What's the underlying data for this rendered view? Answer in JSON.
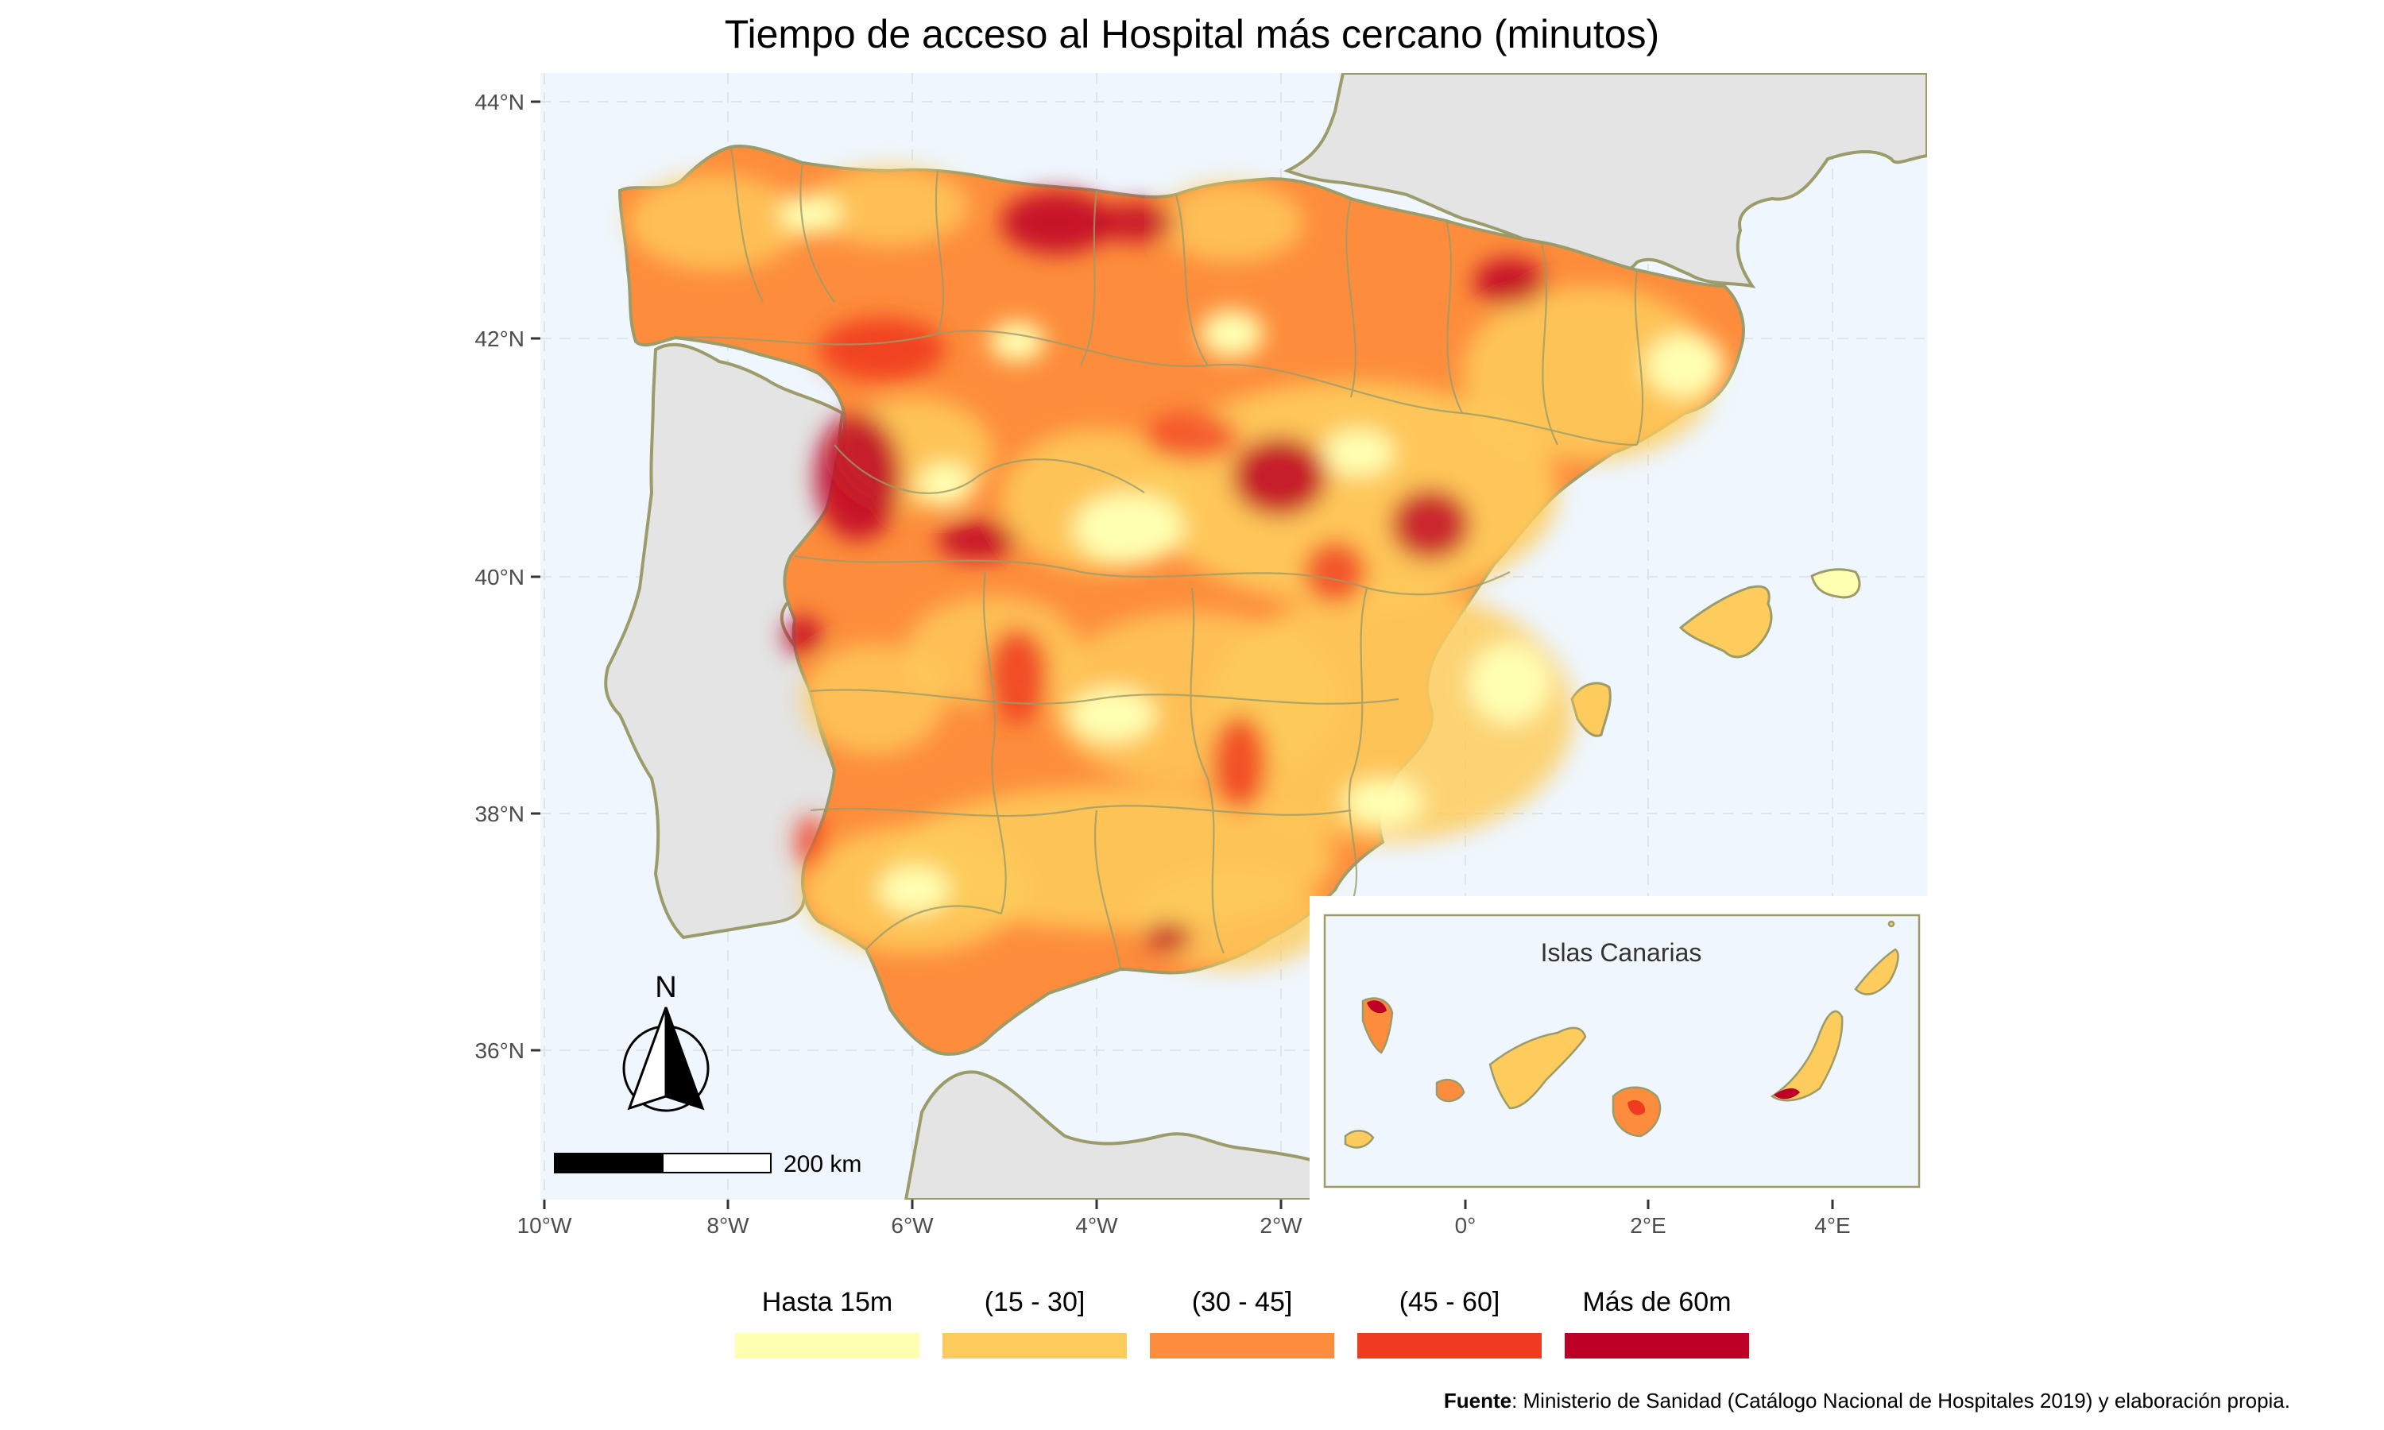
{
  "title": "Tiempo de acceso al Hospital más cercano (minutos)",
  "axes": {
    "lat_ticks": [
      "44°N",
      "42°N",
      "40°N",
      "38°N",
      "36°N"
    ],
    "lon_ticks": [
      "10°W",
      "8°W",
      "6°W",
      "4°W",
      "2°W",
      "0°",
      "2°E",
      "4°E"
    ]
  },
  "inset": {
    "title": "Islas Canarias"
  },
  "north_arrow": {
    "label": "N"
  },
  "scale_bar": {
    "label": "200 km"
  },
  "legend": {
    "items": [
      {
        "label": "Hasta 15m",
        "color": "#FFFFB2"
      },
      {
        "label": "(15 - 30]",
        "color": "#FECC5C"
      },
      {
        "label": "(30 - 45]",
        "color": "#FD8D3C"
      },
      {
        "label": "(45 - 60]",
        "color": "#F03B20"
      },
      {
        "label": "Más de 60m",
        "color": "#BD0026"
      }
    ]
  },
  "source": {
    "bold": "Fuente",
    "text": ": Ministerio de Sanidad (Catálogo Nacional de Hospitales 2019) y elaboración propia."
  },
  "colors": {
    "sea": "#EFF6FD",
    "land_other": "#E4E4E4",
    "border": "#9C9B6A"
  }
}
